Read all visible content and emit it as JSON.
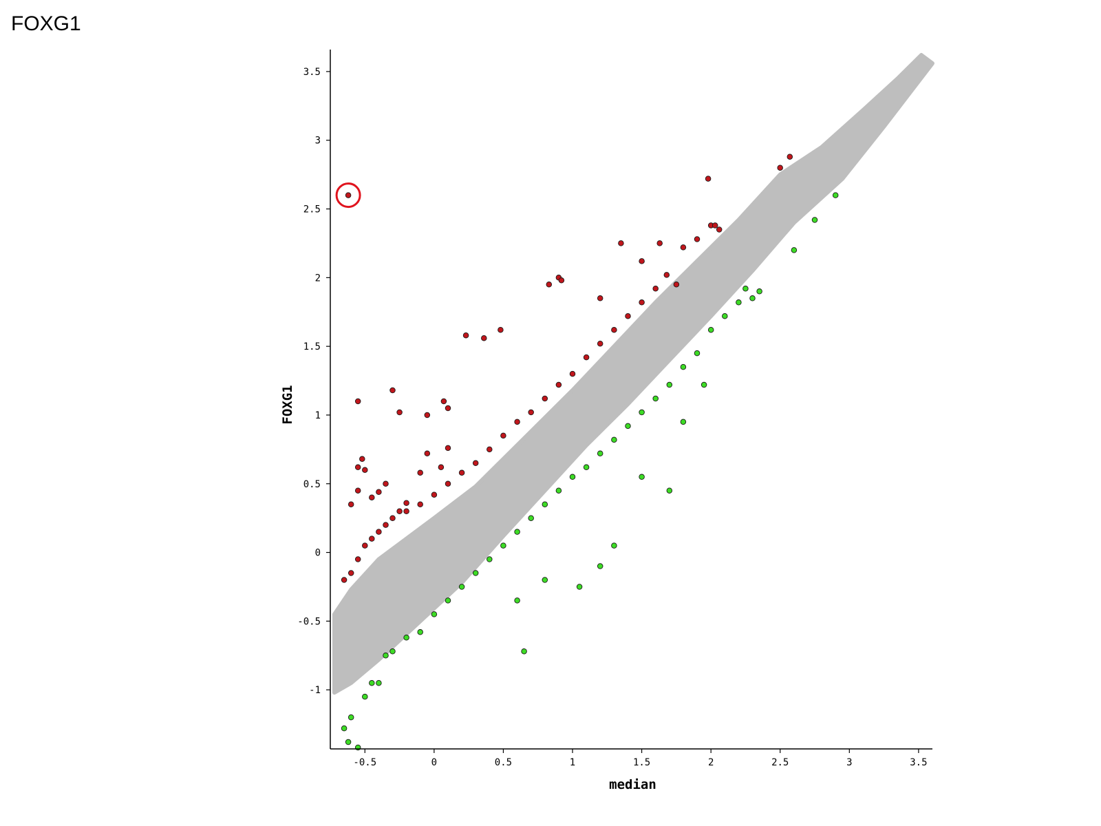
{
  "page_title": "FOXG1",
  "chart_data": {
    "type": "scatter",
    "title": "",
    "xlabel": "median",
    "ylabel": "FOXG1",
    "xlim": [
      -0.75,
      3.6
    ],
    "ylim": [
      -1.43,
      3.66
    ],
    "grid": false,
    "legend": "none",
    "x_ticks": [
      {
        "value": -0.5,
        "label": "-0.5"
      },
      {
        "value": 0,
        "label": "0"
      },
      {
        "value": 0.5,
        "label": "0.5"
      },
      {
        "value": 1,
        "label": "1"
      },
      {
        "value": 1.5,
        "label": "1.5"
      },
      {
        "value": 2,
        "label": "2"
      },
      {
        "value": 2.5,
        "label": "2.5"
      },
      {
        "value": 3,
        "label": "3"
      },
      {
        "value": 3.5,
        "label": "3.5"
      }
    ],
    "y_ticks": [
      {
        "value": -1,
        "label": "-1"
      },
      {
        "value": -0.5,
        "label": "-0.5"
      },
      {
        "value": 0,
        "label": "0"
      },
      {
        "value": 0.5,
        "label": "0.5"
      },
      {
        "value": 1,
        "label": "1"
      },
      {
        "value": 1.5,
        "label": "1.5"
      },
      {
        "value": 2,
        "label": "2"
      },
      {
        "value": 2.5,
        "label": "2.5"
      },
      {
        "value": 3,
        "label": "3"
      },
      {
        "value": 3.5,
        "label": "3.5"
      }
    ],
    "band": {
      "color": "#bebebe",
      "outline": [
        [
          -0.72,
          -1.02
        ],
        [
          -0.72,
          -0.45
        ],
        [
          -0.6,
          -0.27
        ],
        [
          -0.4,
          -0.05
        ],
        [
          -0.2,
          0.1
        ],
        [
          0,
          0.25
        ],
        [
          0.3,
          0.48
        ],
        [
          0.6,
          0.78
        ],
        [
          1.0,
          1.18
        ],
        [
          1.3,
          1.5
        ],
        [
          1.6,
          1.82
        ],
        [
          1.9,
          2.12
        ],
        [
          2.2,
          2.42
        ],
        [
          2.5,
          2.75
        ],
        [
          2.8,
          2.95
        ],
        [
          3.1,
          3.22
        ],
        [
          3.35,
          3.45
        ],
        [
          3.52,
          3.62
        ],
        [
          3.6,
          3.56
        ],
        [
          3.25,
          3.1
        ],
        [
          2.95,
          2.72
        ],
        [
          2.6,
          2.4
        ],
        [
          2.3,
          2.05
        ],
        [
          2.0,
          1.72
        ],
        [
          1.7,
          1.4
        ],
        [
          1.4,
          1.08
        ],
        [
          1.1,
          0.78
        ],
        [
          0.8,
          0.45
        ],
        [
          0.5,
          0.12
        ],
        [
          0.2,
          -0.22
        ],
        [
          -0.1,
          -0.5
        ],
        [
          -0.4,
          -0.78
        ],
        [
          -0.6,
          -0.95
        ]
      ]
    },
    "series": [
      {
        "color": "#c1161c",
        "points": [
          [
            -0.62,
            2.6
          ],
          [
            -0.55,
            0.45
          ],
          [
            -0.6,
            0.35
          ],
          [
            -0.55,
            0.62
          ],
          [
            -0.52,
            0.68
          ],
          [
            -0.5,
            0.6
          ],
          [
            -0.45,
            0.4
          ],
          [
            -0.4,
            0.44
          ],
          [
            -0.35,
            0.5
          ],
          [
            -0.3,
            1.18
          ],
          [
            -0.25,
            0.3
          ],
          [
            -0.2,
            0.36
          ],
          [
            -0.1,
            0.58
          ],
          [
            -0.05,
            0.72
          ],
          [
            0.05,
            0.62
          ],
          [
            0.1,
            0.76
          ],
          [
            -0.55,
            1.1
          ],
          [
            -0.25,
            1.02
          ],
          [
            -0.05,
            1.0
          ],
          [
            0.07,
            1.1
          ],
          [
            0.1,
            1.05
          ],
          [
            0.23,
            1.58
          ],
          [
            0.36,
            1.56
          ],
          [
            0.48,
            1.62
          ],
          [
            0.83,
            1.95
          ],
          [
            0.9,
            2.0
          ],
          [
            0.92,
            1.98
          ],
          [
            1.2,
            1.85
          ],
          [
            1.35,
            2.25
          ],
          [
            1.5,
            2.12
          ],
          [
            1.63,
            2.25
          ],
          [
            1.68,
            2.02
          ],
          [
            1.75,
            1.95
          ],
          [
            1.8,
            2.22
          ],
          [
            1.9,
            2.28
          ],
          [
            2.0,
            2.38
          ],
          [
            2.03,
            2.38
          ],
          [
            2.06,
            2.35
          ],
          [
            1.98,
            2.72
          ],
          [
            2.5,
            2.8
          ],
          [
            2.57,
            2.88
          ],
          [
            -0.65,
            -0.2
          ],
          [
            -0.6,
            -0.15
          ],
          [
            -0.55,
            -0.05
          ],
          [
            -0.5,
            0.05
          ],
          [
            -0.45,
            0.1
          ],
          [
            -0.4,
            0.15
          ],
          [
            -0.35,
            0.2
          ],
          [
            -0.3,
            0.25
          ],
          [
            -0.2,
            0.3
          ],
          [
            -0.1,
            0.35
          ],
          [
            0.0,
            0.42
          ],
          [
            0.1,
            0.5
          ],
          [
            0.2,
            0.58
          ],
          [
            0.3,
            0.65
          ],
          [
            0.4,
            0.75
          ],
          [
            0.5,
            0.85
          ],
          [
            0.6,
            0.95
          ],
          [
            0.7,
            1.02
          ],
          [
            0.8,
            1.12
          ],
          [
            0.9,
            1.22
          ],
          [
            1.0,
            1.3
          ],
          [
            1.1,
            1.42
          ],
          [
            1.2,
            1.52
          ],
          [
            1.3,
            1.62
          ],
          [
            1.4,
            1.72
          ],
          [
            1.5,
            1.82
          ],
          [
            1.6,
            1.92
          ]
        ]
      },
      {
        "color": "#3ddc25",
        "points": [
          [
            -0.65,
            -1.28
          ],
          [
            -0.62,
            -1.38
          ],
          [
            -0.55,
            -1.42
          ],
          [
            -0.6,
            -1.2
          ],
          [
            -0.5,
            -1.05
          ],
          [
            -0.45,
            -0.95
          ],
          [
            -0.4,
            -0.95
          ],
          [
            -0.35,
            -0.75
          ],
          [
            -0.3,
            -0.72
          ],
          [
            -0.2,
            -0.62
          ],
          [
            -0.1,
            -0.58
          ],
          [
            0.0,
            -0.45
          ],
          [
            0.1,
            -0.35
          ],
          [
            0.2,
            -0.25
          ],
          [
            0.3,
            -0.15
          ],
          [
            0.4,
            -0.05
          ],
          [
            0.5,
            0.05
          ],
          [
            0.6,
            0.15
          ],
          [
            0.7,
            0.25
          ],
          [
            0.8,
            0.35
          ],
          [
            0.9,
            0.45
          ],
          [
            1.0,
            0.55
          ],
          [
            1.1,
            0.62
          ],
          [
            1.2,
            0.72
          ],
          [
            1.3,
            0.82
          ],
          [
            1.4,
            0.92
          ],
          [
            1.5,
            1.02
          ],
          [
            1.6,
            1.12
          ],
          [
            1.7,
            1.22
          ],
          [
            1.8,
            1.35
          ],
          [
            1.9,
            1.45
          ],
          [
            2.0,
            1.62
          ],
          [
            2.1,
            1.72
          ],
          [
            2.2,
            1.82
          ],
          [
            2.3,
            1.85
          ],
          [
            2.35,
            1.9
          ],
          [
            2.6,
            2.2
          ],
          [
            2.75,
            2.42
          ],
          [
            2.9,
            2.6
          ],
          [
            0.65,
            -0.72
          ],
          [
            0.6,
            -0.35
          ],
          [
            0.8,
            -0.2
          ],
          [
            1.05,
            -0.25
          ],
          [
            1.2,
            -0.1
          ],
          [
            1.3,
            0.05
          ],
          [
            1.5,
            0.55
          ],
          [
            1.7,
            0.45
          ],
          [
            1.8,
            0.95
          ],
          [
            1.95,
            1.22
          ],
          [
            2.25,
            1.92
          ]
        ]
      }
    ],
    "annotations": [
      {
        "type": "circle",
        "x": -0.62,
        "y": 2.6,
        "color": "#e0141e"
      }
    ]
  }
}
